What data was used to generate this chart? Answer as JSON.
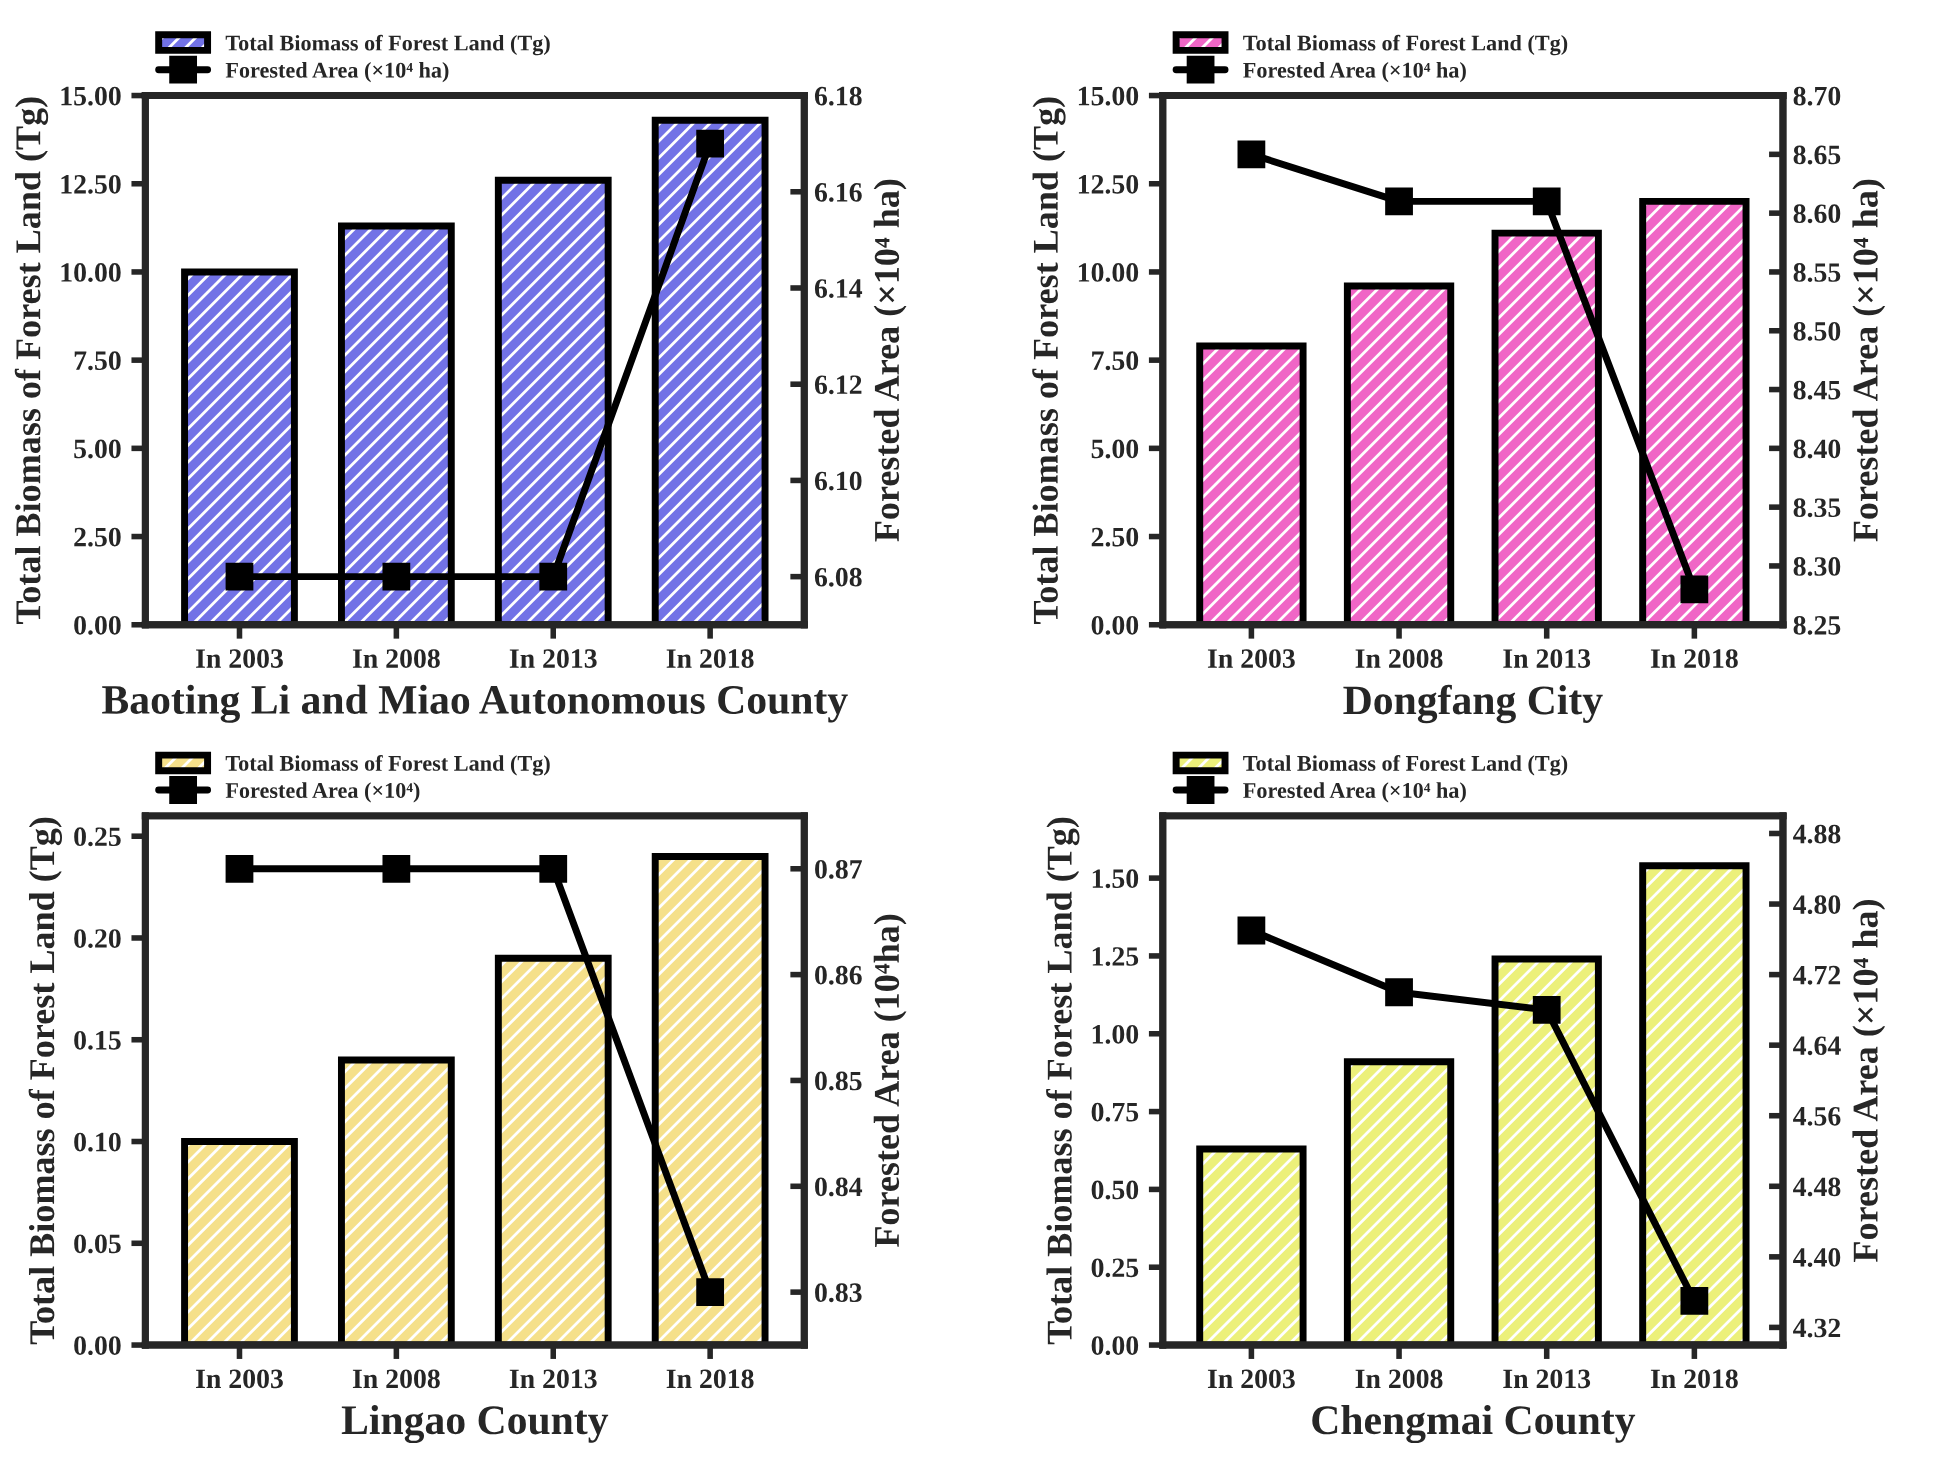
{
  "chart_data": [
    {
      "type": "bar",
      "xlabel": "Baoting Li and Miao Autonomous County",
      "ylabel": "Total Biomass of Forest Land (Tg)",
      "y2label": "Forested Area (×10⁴ ha)",
      "categories": [
        "In 2003",
        "In 2008",
        "In 2013",
        "In 2018"
      ],
      "series": [
        {
          "name": "Total Biomass of Forest Land (Tg)",
          "color": "#7272e6",
          "values": [
            10.0,
            11.3,
            12.6,
            14.3
          ]
        },
        {
          "name": "Forested Area (×10⁴ ha)",
          "type": "line",
          "axis": "y2",
          "color": "#000000",
          "marker": "square",
          "values": [
            6.08,
            6.08,
            6.08,
            6.17
          ]
        }
      ],
      "ylim": [
        0,
        15
      ],
      "yticks": [
        {
          "value": 0,
          "label": "0.00"
        },
        {
          "value": 2.5,
          "label": "2.50"
        },
        {
          "value": 5,
          "label": "5.00"
        },
        {
          "value": 7.5,
          "label": "7.50"
        },
        {
          "value": 10,
          "label": "10.00"
        },
        {
          "value": 12.5,
          "label": "12.50"
        },
        {
          "value": 15,
          "label": "15.00"
        }
      ],
      "y2lim": [
        6.07,
        6.18
      ],
      "y2ticks": [
        6.08,
        {
          "value": 6.1,
          "label": "6.10"
        },
        6.12,
        6.14,
        6.16,
        6.18
      ],
      "legend": "top left",
      "grid": false
    },
    {
      "type": "bar",
      "xlabel": "Dongfang City",
      "ylabel": "Total Biomass of Forest Land (Tg)",
      "y2label": "Forested Area (×10⁴ ha)",
      "categories": [
        "In 2003",
        "In 2008",
        "In 2013",
        "In 2018"
      ],
      "series": [
        {
          "name": "Total Biomass of Forest Land (Tg)",
          "color": "#f066c6",
          "values": [
            7.9,
            9.6,
            11.1,
            12.0
          ]
        },
        {
          "name": "Forested Area (×10⁴ ha)",
          "type": "line",
          "axis": "y2",
          "color": "#000000",
          "marker": "square",
          "values": [
            8.65,
            8.61,
            8.61,
            8.28
          ]
        }
      ],
      "ylim": [
        0,
        15
      ],
      "yticks": [
        {
          "value": 0,
          "label": "0.00"
        },
        {
          "value": 2.5,
          "label": "2.50"
        },
        {
          "value": 5,
          "label": "5.00"
        },
        {
          "value": 7.5,
          "label": "7.50"
        },
        {
          "value": 10,
          "label": "10.00"
        },
        {
          "value": 12.5,
          "label": "12.50"
        },
        {
          "value": 15,
          "label": "15.00"
        }
      ],
      "y2lim": [
        8.25,
        8.7
      ],
      "y2ticks": [
        {
          "value": 8.25,
          "label": "8.25"
        },
        {
          "value": 8.3,
          "label": "8.30"
        },
        {
          "value": 8.35,
          "label": "8.35"
        },
        {
          "value": 8.4,
          "label": "8.40"
        },
        {
          "value": 8.45,
          "label": "8.45"
        },
        {
          "value": 8.5,
          "label": "8.50"
        },
        {
          "value": 8.55,
          "label": "8.55"
        },
        {
          "value": 8.6,
          "label": "8.60"
        },
        {
          "value": 8.65,
          "label": "8.65"
        },
        {
          "value": 8.7,
          "label": "8.70"
        }
      ],
      "legend": "top left",
      "grid": false
    },
    {
      "type": "bar",
      "xlabel": "Lingao County",
      "ylabel": "Total Biomass of Forest Land (Tg)",
      "y2label": "Forested Area (10⁴ha)",
      "categories": [
        "In 2003",
        "In 2008",
        "In 2013",
        "In 2018"
      ],
      "series": [
        {
          "name": "Total Biomass of Forest Land (Tg)",
          "color": "#f5e08a",
          "values": [
            0.1,
            0.14,
            0.19,
            0.24
          ]
        },
        {
          "name": "Forested Area (×10⁴)",
          "type": "line",
          "axis": "y2",
          "color": "#000000",
          "marker": "square",
          "values": [
            0.87,
            0.87,
            0.87,
            0.83
          ]
        }
      ],
      "ylim": [
        0,
        0.26
      ],
      "yticks": [
        {
          "value": 0,
          "label": "0.00"
        },
        {
          "value": 0.05,
          "label": "0.05"
        },
        {
          "value": 0.1,
          "label": "0.10"
        },
        {
          "value": 0.15,
          "label": "0.15"
        },
        {
          "value": 0.2,
          "label": "0.20"
        },
        {
          "value": 0.25,
          "label": "0.25"
        }
      ],
      "y2lim": [
        0.825,
        0.875
      ],
      "y2ticks": [
        0.83,
        0.84,
        0.85,
        0.86,
        0.87
      ],
      "legend": "top left",
      "grid": false
    },
    {
      "type": "bar",
      "xlabel": "Chengmai County",
      "ylabel": "Total Biomass of Forest Land (Tg)",
      "y2label": "Forested Area (×10⁴ ha)",
      "categories": [
        "In 2003",
        "In 2008",
        "In 2013",
        "In 2018"
      ],
      "series": [
        {
          "name": "Total Biomass of Forest Land (Tg)",
          "color": "#ecf07a",
          "values": [
            0.63,
            0.91,
            1.24,
            1.54
          ]
        },
        {
          "name": "Forested Area (×10⁴ ha)",
          "type": "line",
          "axis": "y2",
          "color": "#000000",
          "marker": "square",
          "values": [
            4.77,
            4.7,
            4.68,
            4.35
          ]
        }
      ],
      "ylim": [
        0,
        1.7
      ],
      "yticks": [
        {
          "value": 0,
          "label": "0.00"
        },
        {
          "value": 0.25,
          "label": "0.25"
        },
        {
          "value": 0.5,
          "label": "0.50"
        },
        {
          "value": 0.75,
          "label": "0.75"
        },
        {
          "value": 1,
          "label": "1.00"
        },
        {
          "value": 1.25,
          "label": "1.25"
        },
        {
          "value": 1.5,
          "label": "1.50"
        }
      ],
      "y2lim": [
        4.3,
        4.9
      ],
      "y2ticks": [
        4.32,
        {
          "value": 4.4,
          "label": "4.40"
        },
        4.48,
        4.56,
        4.64,
        4.72,
        {
          "value": 4.8,
          "label": "4.80"
        },
        4.88
      ],
      "legend": "top left",
      "grid": false
    }
  ]
}
